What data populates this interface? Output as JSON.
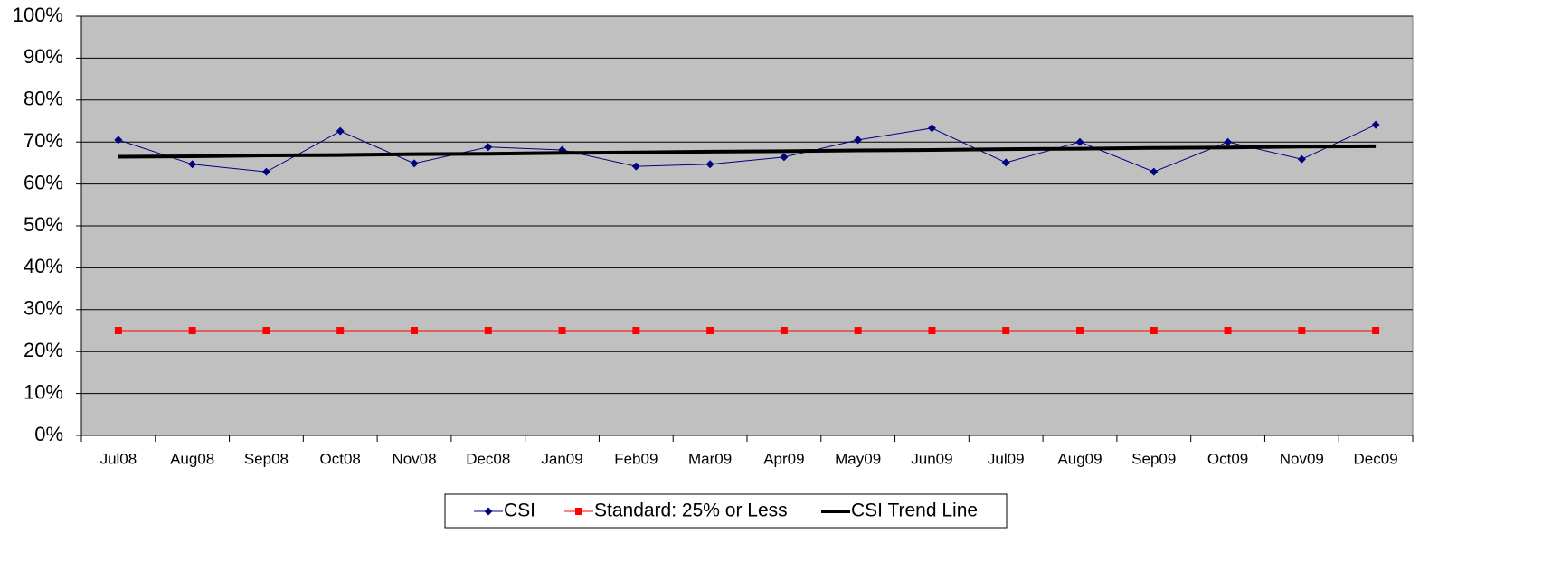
{
  "chart_data": {
    "type": "line",
    "categories": [
      "Jul08",
      "Aug08",
      "Sep08",
      "Oct08",
      "Nov08",
      "Dec08",
      "Jan09",
      "Feb09",
      "Mar09",
      "Apr09",
      "May09",
      "Jun09",
      "Jul09",
      "Aug09",
      "Sep09",
      "Oct09",
      "Nov09",
      "Dec09"
    ],
    "series": [
      {
        "name": "CSI",
        "color": "#000080",
        "marker": "diamond",
        "line_width": 1,
        "values": [
          70.5,
          64.7,
          62.9,
          72.6,
          64.9,
          68.8,
          68.1,
          64.2,
          64.7,
          66.4,
          70.5,
          73.3,
          65.1,
          70.0,
          62.9,
          70.0,
          65.9,
          74.1
        ]
      },
      {
        "name": "Standard: 25% or Less",
        "color": "#ff0000",
        "marker": "square",
        "line_width": 1,
        "values": [
          25,
          25,
          25,
          25,
          25,
          25,
          25,
          25,
          25,
          25,
          25,
          25,
          25,
          25,
          25,
          25,
          25,
          25
        ]
      },
      {
        "name": "CSI Trend Line",
        "color": "#000000",
        "marker": null,
        "line_width": 4,
        "values": [
          66.5,
          66.6,
          66.8,
          66.9,
          67.1,
          67.2,
          67.4,
          67.5,
          67.7,
          67.8,
          68.0,
          68.1,
          68.3,
          68.4,
          68.6,
          68.7,
          68.9,
          69.0
        ]
      }
    ],
    "ylim": [
      0,
      100
    ],
    "yticks": [
      {
        "value": 0,
        "label": "0%"
      },
      {
        "value": 10,
        "label": "10%"
      },
      {
        "value": 20,
        "label": "20%"
      },
      {
        "value": 30,
        "label": "30%"
      },
      {
        "value": 40,
        "label": "40%"
      },
      {
        "value": 50,
        "label": "50%"
      },
      {
        "value": 60,
        "label": "60%"
      },
      {
        "value": 70,
        "label": "70%"
      },
      {
        "value": 80,
        "label": "80%"
      },
      {
        "value": 90,
        "label": "90%"
      },
      {
        "value": 100,
        "label": "100%"
      }
    ],
    "grid": true,
    "legend": "bottom",
    "plot_background": "#c0c0c0"
  }
}
